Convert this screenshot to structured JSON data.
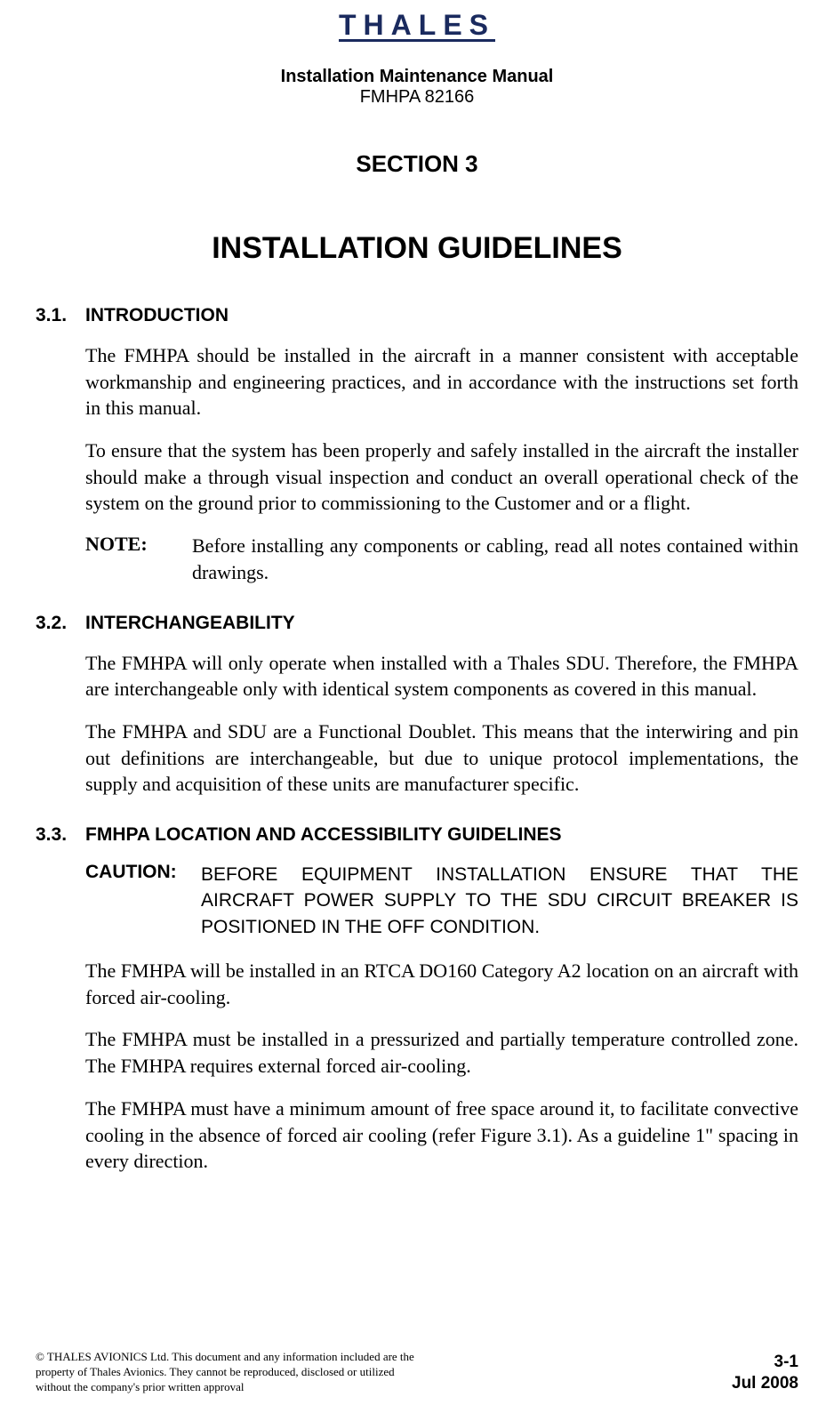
{
  "logo": {
    "text": "THALES",
    "color": "#1a2a5e",
    "fontsize": 32,
    "letter_spacing": 8
  },
  "header": {
    "title": "Installation Maintenance Manual",
    "subtitle": "FMHPA 82166"
  },
  "section_label": "SECTION 3",
  "main_title": "INSTALLATION GUIDELINES",
  "sections": [
    {
      "number": "3.1.",
      "title": "INTRODUCTION",
      "paragraphs": [
        "The FMHPA should be installed in the aircraft in a manner consistent with acceptable workmanship and engineering practices, and in accordance with the instructions set forth in this manual.",
        "To ensure that the system has been properly and safely installed in the aircraft the installer should make a through visual inspection and conduct an overall operational check of the system on the ground prior to commissioning to the Customer and or a flight."
      ],
      "note": {
        "label": "NOTE:",
        "text": "Before installing any components or cabling, read all notes contained within   drawings."
      }
    },
    {
      "number": "3.2.",
      "title": "INTERCHANGEABILITY",
      "paragraphs": [
        "The FMHPA will only operate when installed with a Thales SDU. Therefore, the FMHPA are interchangeable only with identical system components as covered in this manual.",
        "The FMHPA and SDU are a Functional Doublet. This means that the interwiring and pin out definitions are interchangeable, but due to unique protocol implementations, the supply and acquisition of these units are manufacturer specific."
      ]
    },
    {
      "number": "3.3.",
      "title": "FMHPA LOCATION AND ACCESSIBILITY GUIDELINES",
      "caution": {
        "label": "CAUTION:",
        "text": "BEFORE EQUIPMENT INSTALLATION ENSURE THAT THE AIRCRAFT POWER SUPPLY TO THE SDU CIRCUIT BREAKER IS POSITIONED IN THE OFF CONDITION."
      },
      "paragraphs": [
        "The FMHPA will be installed in an RTCA DO160 Category A2 location on an aircraft with forced air-cooling.",
        "The FMHPA must be installed in a pressurized and partially temperature controlled zone. The FMHPA requires external forced air-cooling.",
        "The FMHPA must have a minimum amount of free space around it, to facilitate convective cooling in the absence of forced air cooling (refer Figure 3.1). As a guideline 1\" spacing in every direction."
      ]
    }
  ],
  "footer": {
    "copyright": "© THALES AVIONICS Ltd. This document and any information included are the property of Thales Avionics. They cannot be reproduced, disclosed or utilized without the company's prior written approval",
    "page_number": "3-1",
    "date": "Jul 2008"
  },
  "colors": {
    "background": "#ffffff",
    "text": "#000000",
    "logo": "#1a2a5e"
  },
  "typography": {
    "body_font": "Times New Roman",
    "heading_font": "Arial",
    "body_fontsize": 22,
    "heading_fontsize": 21,
    "section_label_fontsize": 26,
    "main_title_fontsize": 34,
    "footer_fontsize": 13,
    "page_info_fontsize": 19
  }
}
